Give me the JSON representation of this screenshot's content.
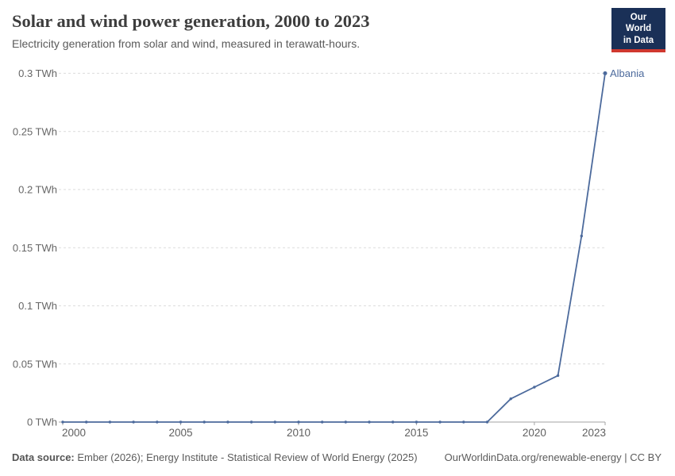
{
  "header": {
    "title": "Solar and wind power generation, 2000 to 2023",
    "subtitle": "Electricity generation from solar and wind, measured in terawatt-hours.",
    "logo": {
      "line1": "Our World",
      "line2": "in Data",
      "bg_color": "#1a3057",
      "bar_color": "#d0382f"
    }
  },
  "chart_data": {
    "type": "line",
    "title": "Solar and wind power generation, 2000 to 2023",
    "xlabel": "",
    "ylabel": "TWh",
    "x": [
      2000,
      2001,
      2002,
      2003,
      2004,
      2005,
      2006,
      2007,
      2008,
      2009,
      2010,
      2011,
      2012,
      2013,
      2014,
      2015,
      2016,
      2017,
      2018,
      2019,
      2020,
      2021,
      2022,
      2023
    ],
    "series": [
      {
        "name": "Albania",
        "color": "#4c6a9c",
        "values": [
          0,
          0,
          0,
          0,
          0,
          0,
          0,
          0,
          0,
          0,
          0,
          0,
          0,
          0,
          0,
          0,
          0,
          0,
          0,
          0.02,
          0.03,
          0.04,
          0.16,
          0.3
        ]
      }
    ],
    "ylim": [
      0,
      0.3
    ],
    "yticks": [
      {
        "value": 0,
        "label": "0 TWh"
      },
      {
        "value": 0.05,
        "label": "0.05 TWh"
      },
      {
        "value": 0.1,
        "label": "0.1 TWh"
      },
      {
        "value": 0.15,
        "label": "0.15 TWh"
      },
      {
        "value": 0.2,
        "label": "0.2 TWh"
      },
      {
        "value": 0.25,
        "label": "0.25 TWh"
      },
      {
        "value": 0.3,
        "label": "0.3 TWh"
      }
    ],
    "xticks": [
      2000,
      2005,
      2010,
      2015,
      2020,
      2023
    ],
    "grid": "horizontal-dashed",
    "legend_position": "end-of-line-label",
    "colors": {
      "gridline": "#dcdcdc",
      "axis": "#a3a3a3",
      "tick_label": "#666666"
    }
  },
  "footer": {
    "source_label": "Data source:",
    "source_text": " Ember (2026); Energy Institute - Statistical Review of World Energy (2025)",
    "link_text": "OurWorldinData.org/renewable-energy | CC BY"
  }
}
